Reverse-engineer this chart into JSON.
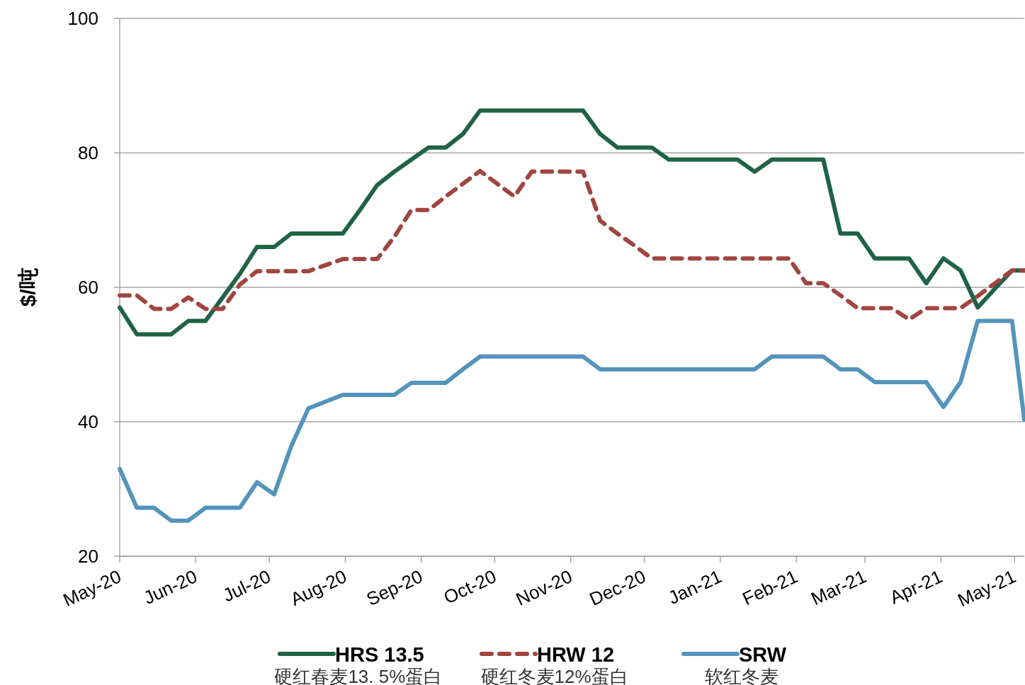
{
  "chart_data": {
    "type": "line",
    "ylabel": "$/吨",
    "grid": "y",
    "legend": "bottom",
    "x": [
      "2020-05-01",
      "2020-05-08",
      "2020-05-15",
      "2020-05-22",
      "2020-05-29",
      "2020-06-05",
      "2020-06-12",
      "2020-06-19",
      "2020-06-26",
      "2020-07-03",
      "2020-07-10",
      "2020-07-17",
      "2020-07-24",
      "2020-07-31",
      "2020-08-07",
      "2020-08-14",
      "2020-08-21",
      "2020-08-28",
      "2020-09-04",
      "2020-09-11",
      "2020-09-18",
      "2020-09-25",
      "2020-10-02",
      "2020-10-09",
      "2020-10-16",
      "2020-10-23",
      "2020-10-30",
      "2020-11-06",
      "2020-11-13",
      "2020-11-20",
      "2020-11-27",
      "2020-12-04",
      "2020-12-11",
      "2020-12-18",
      "2020-12-25",
      "2021-01-01",
      "2021-01-08",
      "2021-01-15",
      "2021-01-22",
      "2021-01-29",
      "2021-02-05",
      "2021-02-12",
      "2021-02-19",
      "2021-02-26",
      "2021-03-05",
      "2021-03-12",
      "2021-03-19",
      "2021-03-26",
      "2021-04-02",
      "2021-04-09",
      "2021-04-16",
      "2021-04-23",
      "2021-04-30",
      "2021-05-05"
    ],
    "series": [
      {
        "name": "HRS 13.5\n硬红春麦13. 5%蛋白",
        "color": "#206246",
        "line_style": "solid",
        "values": [
          57,
          53,
          53,
          53,
          55,
          55,
          58.5,
          62,
          66,
          66,
          68,
          68,
          68,
          68,
          71.5,
          75.2,
          77.2,
          79,
          80.8,
          80.8,
          82.8,
          86.3,
          86.3,
          86.3,
          86.3,
          86.3,
          86.3,
          86.3,
          82.8,
          80.8,
          80.8,
          80.8,
          79,
          79,
          79,
          79,
          79,
          77.2,
          79,
          79,
          79,
          79,
          68,
          68,
          64.3,
          64.3,
          64.3,
          60.6,
          64.3,
          62.5,
          57,
          59.8,
          62.5,
          62.5
        ]
      },
      {
        "name": "HRW 12\n硬红冬麦12%蛋白",
        "color": "#a04540",
        "line_style": "dashed",
        "values": [
          58.8,
          58.8,
          56.8,
          56.8,
          58.5,
          56.8,
          56.8,
          60.4,
          62.4,
          62.4,
          62.4,
          62.4,
          63.3,
          64.2,
          64.2,
          64.2,
          67.5,
          71.5,
          71.5,
          73.5,
          75.4,
          77.3,
          75.4,
          73.5,
          77.2,
          77.2,
          77.2,
          77.2,
          69.9,
          68,
          66.2,
          64.3,
          64.3,
          64.3,
          64.3,
          64.3,
          64.3,
          64.3,
          64.3,
          64.3,
          60.6,
          60.6,
          58.8,
          56.9,
          56.9,
          56.9,
          55.2,
          56.9,
          56.9,
          56.9,
          58.7,
          60.6,
          62.5,
          62.5
        ]
      },
      {
        "name": "SRW\n软红冬麦",
        "color": "#5494bb",
        "line_style": "solid",
        "values": [
          33,
          27.2,
          27.2,
          25.3,
          25.3,
          27.2,
          27.2,
          27.2,
          31,
          29.2,
          36.4,
          42,
          43,
          44,
          44,
          44,
          44,
          45.8,
          45.8,
          45.8,
          47.8,
          49.7,
          49.7,
          49.7,
          49.7,
          49.7,
          49.7,
          49.7,
          47.8,
          47.8,
          47.8,
          47.8,
          47.8,
          47.8,
          47.8,
          47.8,
          47.8,
          47.8,
          49.7,
          49.7,
          49.7,
          49.7,
          47.8,
          47.8,
          45.9,
          45.9,
          45.9,
          45.9,
          42.2,
          45.9,
          55,
          55,
          55,
          40.3
        ]
      }
    ],
    "xlim": [
      "2020-05-01",
      "2021-05-05"
    ],
    "xticks": [
      {
        "value": "2020-05-01",
        "label": "May-20"
      },
      {
        "value": "2020-06-01",
        "label": "Jun-20"
      },
      {
        "value": "2020-07-01",
        "label": "Jul-20"
      },
      {
        "value": "2020-08-01",
        "label": "Aug-20"
      },
      {
        "value": "2020-09-01",
        "label": "Sep-20"
      },
      {
        "value": "2020-10-01",
        "label": "Oct-20"
      },
      {
        "value": "2020-11-01",
        "label": "Nov-20"
      },
      {
        "value": "2020-12-01",
        "label": "Dec-20"
      },
      {
        "value": "2021-01-01",
        "label": "Jan-21"
      },
      {
        "value": "2021-02-01",
        "label": "Feb-21"
      },
      {
        "value": "2021-03-01",
        "label": "Mar-21"
      },
      {
        "value": "2021-04-01",
        "label": "Apr-21"
      },
      {
        "value": "2021-05-01",
        "label": "May-21"
      }
    ],
    "ylim": [
      20,
      100
    ],
    "yticks": [
      20,
      40,
      60,
      80,
      100
    ]
  }
}
